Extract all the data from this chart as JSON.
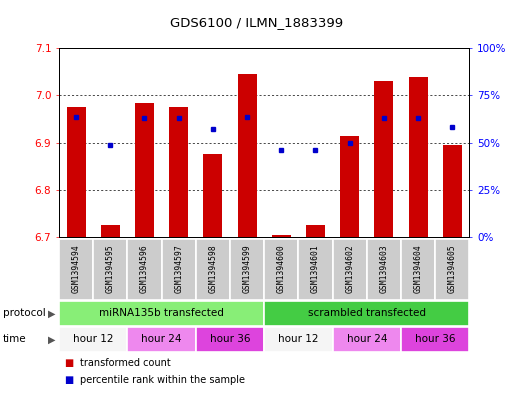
{
  "title": "GDS6100 / ILMN_1883399",
  "samples": [
    "GSM1394594",
    "GSM1394595",
    "GSM1394596",
    "GSM1394597",
    "GSM1394598",
    "GSM1394599",
    "GSM1394600",
    "GSM1394601",
    "GSM1394602",
    "GSM1394603",
    "GSM1394604",
    "GSM1394605"
  ],
  "bar_values": [
    6.975,
    6.725,
    6.985,
    6.975,
    6.875,
    7.045,
    6.705,
    6.725,
    6.915,
    7.03,
    7.04,
    6.895
  ],
  "blue_values": [
    6.955,
    6.895,
    6.953,
    6.953,
    6.93,
    6.955,
    6.885,
    6.885,
    6.9,
    6.952,
    6.952,
    6.933
  ],
  "bar_bottom": 6.7,
  "ylim": [
    6.7,
    7.1
  ],
  "yticks": [
    6.7,
    6.8,
    6.9,
    7.0,
    7.1
  ],
  "y2ticks": [
    0,
    25,
    50,
    75,
    100
  ],
  "y2labels": [
    "0%",
    "25%",
    "50%",
    "75%",
    "100%"
  ],
  "bar_color": "#cc0000",
  "blue_color": "#0000cc",
  "protocol_groups": [
    {
      "label": "miRNA135b transfected",
      "start": 0,
      "end": 5,
      "color": "#88ee77"
    },
    {
      "label": "scrambled transfected",
      "start": 6,
      "end": 11,
      "color": "#44cc44"
    }
  ],
  "time_groups": [
    {
      "label": "hour 12",
      "start": 0,
      "end": 1,
      "color": "#f8f8f8"
    },
    {
      "label": "hour 24",
      "start": 2,
      "end": 3,
      "color": "#ee88ee"
    },
    {
      "label": "hour 36",
      "start": 4,
      "end": 5,
      "color": "#dd44dd"
    },
    {
      "label": "hour 12",
      "start": 6,
      "end": 7,
      "color": "#f8f8f8"
    },
    {
      "label": "hour 24",
      "start": 8,
      "end": 9,
      "color": "#ee88ee"
    },
    {
      "label": "hour 36",
      "start": 10,
      "end": 11,
      "color": "#dd44dd"
    }
  ],
  "legend_red": "transformed count",
  "legend_blue": "percentile rank within the sample",
  "protocol_label": "protocol",
  "time_label": "time"
}
